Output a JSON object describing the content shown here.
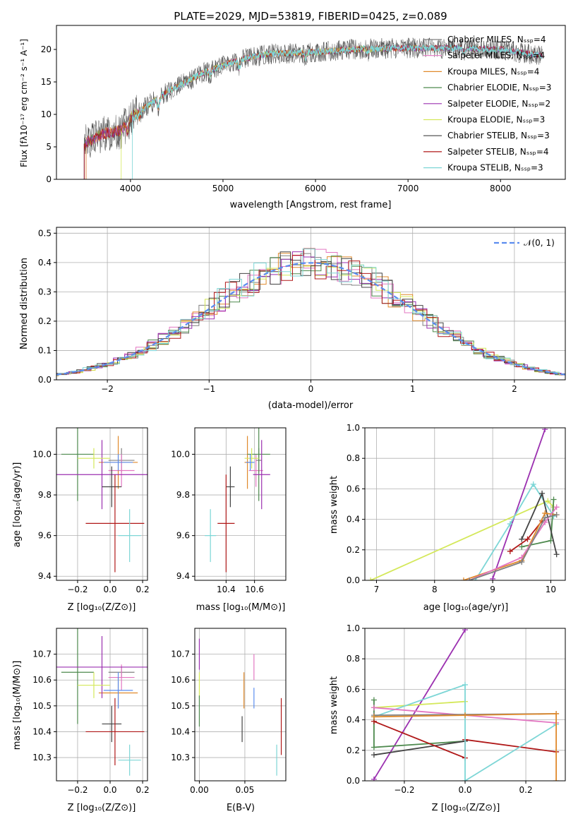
{
  "title": "PLATE=2029, MJD=53819, FIBERID=0425, z=0.089",
  "colors": {
    "chabrier_miles": "#808080",
    "salpeter_miles": "#e377c2",
    "kroupa_miles": "#e08a2c",
    "chabrier_elodie": "#4e8a4e",
    "salpeter_elodie": "#9b30b0",
    "kroupa_elodie": "#d4e85a",
    "chabrier_stelib": "#444444",
    "salpeter_stelib": "#b01818",
    "kroupa_stelib": "#7dd6d6",
    "blue_extra": "#5b8def",
    "normal_curve": "#5b8def"
  },
  "chart_data": [
    {
      "id": "spectrum",
      "type": "line",
      "xlabel": "wavelength [Angstrom, rest frame]",
      "ylabel": "Flux [f$_\\lambda$10$^{-17}$ erg cm$^{-2}$ s$^{-1}$ A$^{-1}$]",
      "xlim": [
        3200,
        8700
      ],
      "ylim": [
        0,
        23.7
      ],
      "xticks": [
        "4000",
        "5000",
        "6000",
        "7000",
        "8000"
      ],
      "yticks": [
        "0",
        "5",
        "10",
        "15",
        "20"
      ],
      "legend": "upper-right",
      "series": [
        {
          "name": "Chabrier MILES, N$_{SSP}$=4",
          "key": "chabrier_miles"
        },
        {
          "name": "Salpeter MILES, N$_{SSP}$=4",
          "key": "salpeter_miles"
        },
        {
          "name": "Kroupa MILES, N$_{SSP}$=4",
          "key": "kroupa_miles"
        },
        {
          "name": "Chabrier ELODIE, N$_{SSP}$=3",
          "key": "chabrier_elodie"
        },
        {
          "name": "Salpeter ELODIE, N$_{SSP}$=2",
          "key": "salpeter_elodie"
        },
        {
          "name": "Kroupa ELODIE, N$_{SSP}$=3",
          "key": "kroupa_elodie"
        },
        {
          "name": "Chabrier STELIB, N$_{SSP}$=3",
          "key": "chabrier_stelib"
        },
        {
          "name": "Salpeter STELIB, N$_{SSP}$=4",
          "key": "salpeter_stelib"
        },
        {
          "name": "Kroupa STELIB, N$_{SSP}$=3",
          "key": "kroupa_stelib"
        }
      ],
      "continuum": [
        [
          3500,
          5.5
        ],
        [
          3700,
          7
        ],
        [
          3900,
          7.5
        ],
        [
          4000,
          9.5
        ],
        [
          4200,
          11.5
        ],
        [
          4400,
          13.5
        ],
        [
          4600,
          15
        ],
        [
          4800,
          16.5
        ],
        [
          5000,
          17.5
        ],
        [
          5200,
          18.5
        ],
        [
          5500,
          19.3
        ],
        [
          6000,
          19.6
        ],
        [
          6500,
          20.1
        ],
        [
          7000,
          20.2
        ],
        [
          7500,
          20.2
        ],
        [
          8000,
          20
        ],
        [
          8450,
          19
        ]
      ],
      "dips": [
        [
          3968,
          1.5
        ],
        [
          4101,
          0.8
        ],
        [
          4300,
          1.5
        ],
        [
          4861,
          0.8
        ],
        [
          5175,
          1.2
        ],
        [
          5890,
          0.9
        ],
        [
          6563,
          0.8
        ],
        [
          7600,
          0.5
        ]
      ]
    },
    {
      "id": "residuals",
      "type": "area",
      "xlabel": "(data-model)/error",
      "ylabel": "Normed distribution",
      "xlim": [
        -2.5,
        2.5
      ],
      "ylim": [
        0,
        0.52
      ],
      "xticks": [
        "−2",
        "−1",
        "0",
        "1",
        "2"
      ],
      "yticks": [
        "0.0",
        "0.1",
        "0.2",
        "0.3",
        "0.4",
        "0.5"
      ],
      "legend": "top-right",
      "normal_label": "$\\mathcal{N}(0,1)$",
      "grid": true
    },
    {
      "id": "age_vs_Z",
      "type": "scatter",
      "xlabel": "Z [log$_{10}$($Z/Z_\\odot$)]",
      "ylabel": "age  [log$_{10}$($age/yr$)]",
      "xlim": [
        -0.33,
        0.23
      ],
      "ylim": [
        9.38,
        10.13
      ],
      "xticks": [
        "−0.2",
        "0.0",
        "0.2"
      ],
      "yticks": [
        "9.4",
        "9.6",
        "9.8",
        "10.0"
      ],
      "points": [
        {
          "key": "chabrier_miles",
          "x": 0.07,
          "y": 9.97,
          "xerr": 0.08,
          "yerr": 0.06
        },
        {
          "key": "salpeter_miles",
          "x": 0.07,
          "y": 9.92,
          "xerr": 0.08,
          "yerr": 0.08
        },
        {
          "key": "kroupa_miles",
          "x": 0.05,
          "y": 9.96,
          "xerr": 0.12,
          "yerr": 0.13
        },
        {
          "key": "chabrier_elodie",
          "x": -0.2,
          "y": 10.0,
          "xerr": 0.1,
          "yerr": 0.23
        },
        {
          "key": "salpeter_elodie",
          "x": -0.05,
          "y": 9.9,
          "xerr": 0.28,
          "yerr": 0.17
        },
        {
          "key": "kroupa_elodie",
          "x": -0.1,
          "y": 9.98,
          "xerr": 0.1,
          "yerr": 0.05
        },
        {
          "key": "chabrier_stelib",
          "x": 0.01,
          "y": 9.84,
          "xerr": 0.06,
          "yerr": 0.1
        },
        {
          "key": "salpeter_stelib",
          "x": 0.03,
          "y": 9.66,
          "xerr": 0.18,
          "yerr": 0.24
        },
        {
          "key": "kroupa_stelib",
          "x": 0.12,
          "y": 9.6,
          "xerr": 0.07,
          "yerr": 0.13
        },
        {
          "key": "blue_extra",
          "x": 0.05,
          "y": 9.96,
          "xerr": 0.09,
          "yerr": 0.04
        }
      ]
    },
    {
      "id": "age_vs_mass",
      "type": "scatter",
      "xlabel": "mass [log$_{10}$($M/M_\\odot$)]",
      "ylabel": "",
      "xlim": [
        10.18,
        10.82
      ],
      "ylim": [
        9.38,
        10.13
      ],
      "xticks": [
        "10.4",
        "10.6"
      ],
      "yticks": [
        "9.4",
        "9.6",
        "9.8",
        "10.0"
      ],
      "points": [
        {
          "key": "chabrier_miles",
          "x": 10.63,
          "y": 9.97,
          "xerr": 0.02,
          "yerr": 0.06
        },
        {
          "key": "salpeter_miles",
          "x": 10.61,
          "y": 9.92,
          "xerr": 0.05,
          "yerr": 0.08
        },
        {
          "key": "kroupa_miles",
          "x": 10.55,
          "y": 9.96,
          "xerr": 0.02,
          "yerr": 0.13
        },
        {
          "key": "chabrier_elodie",
          "x": 10.63,
          "y": 10.0,
          "xerr": 0.08,
          "yerr": 0.23
        },
        {
          "key": "salpeter_elodie",
          "x": 10.65,
          "y": 9.9,
          "xerr": 0.06,
          "yerr": 0.17
        },
        {
          "key": "kroupa_elodie",
          "x": 10.58,
          "y": 9.98,
          "xerr": 0.05,
          "yerr": 0.05
        },
        {
          "key": "chabrier_stelib",
          "x": 10.43,
          "y": 9.84,
          "xerr": 0.03,
          "yerr": 0.1
        },
        {
          "key": "salpeter_stelib",
          "x": 10.4,
          "y": 9.66,
          "xerr": 0.06,
          "yerr": 0.24
        },
        {
          "key": "kroupa_stelib",
          "x": 10.29,
          "y": 9.6,
          "xerr": 0.04,
          "yerr": 0.13
        },
        {
          "key": "blue_extra",
          "x": 10.57,
          "y": 9.96,
          "xerr": 0.03,
          "yerr": 0.04
        }
      ]
    },
    {
      "id": "weight_vs_age",
      "type": "line",
      "xlabel": "age  [log$_{10}$($age/yr$)]",
      "ylabel": "mass weight",
      "xlim": [
        6.8,
        10.25
      ],
      "ylim": [
        0,
        1
      ],
      "xticks": [
        "7",
        "8",
        "9",
        "10"
      ],
      "yticks": [
        "0.0",
        "0.2",
        "0.4",
        "0.6",
        "0.8",
        "1.0"
      ],
      "grid": true,
      "series": [
        {
          "key": "kroupa_elodie",
          "x": [
            6.9,
            9.95,
            10.05
          ],
          "y": [
            0.0,
            0.52,
            0.48
          ]
        },
        {
          "key": "salpeter_elodie",
          "x": [
            9.0,
            9.9
          ],
          "y": [
            0.01,
            0.99
          ]
        },
        {
          "key": "kroupa_stelib",
          "x": [
            8.7,
            9.3,
            9.7,
            10.05
          ],
          "y": [
            0.0,
            0.37,
            0.63,
            0.42
          ]
        },
        {
          "key": "chabrier_elodie",
          "x": [
            9.5,
            10.0,
            10.05
          ],
          "y": [
            0.22,
            0.26,
            0.53
          ]
        },
        {
          "key": "chabrier_stelib",
          "x": [
            9.5,
            9.85,
            10.1
          ],
          "y": [
            0.27,
            0.57,
            0.17
          ]
        },
        {
          "key": "salpeter_stelib",
          "x": [
            9.3,
            9.6,
            9.85
          ],
          "y": [
            0.19,
            0.27,
            0.39
          ]
        },
        {
          "key": "kroupa_miles",
          "x": [
            8.5,
            9.5,
            9.9,
            10.1
          ],
          "y": [
            0.0,
            0.13,
            0.44,
            0.43
          ]
        },
        {
          "key": "salpeter_miles",
          "x": [
            8.6,
            9.5,
            9.9,
            10.1
          ],
          "y": [
            0.0,
            0.15,
            0.38,
            0.48
          ]
        },
        {
          "key": "chabrier_miles",
          "x": [
            8.6,
            9.5,
            9.9,
            10.1
          ],
          "y": [
            0.0,
            0.12,
            0.41,
            0.43
          ]
        }
      ]
    },
    {
      "id": "mass_vs_Z",
      "type": "scatter",
      "xlabel": "Z [log$_{10}$($Z/Z_\\odot$)]",
      "ylabel": "mass [log$_{10}$($M/M_\\odot$)]",
      "xlim": [
        -0.33,
        0.23
      ],
      "ylim": [
        10.21,
        10.8
      ],
      "xticks": [
        "−0.2",
        "0.0",
        "0.2"
      ],
      "yticks": [
        "10.3",
        "10.4",
        "10.5",
        "10.6",
        "10.7"
      ],
      "points": [
        {
          "key": "chabrier_miles",
          "x": 0.07,
          "y": 10.63,
          "xerr": 0.08,
          "yerr": 0.02
        },
        {
          "key": "salpeter_miles",
          "x": 0.07,
          "y": 10.61,
          "xerr": 0.08,
          "yerr": 0.05
        },
        {
          "key": "kroupa_miles",
          "x": 0.05,
          "y": 10.55,
          "xerr": 0.12,
          "yerr": 0.06
        },
        {
          "key": "chabrier_elodie",
          "x": -0.2,
          "y": 10.63,
          "xerr": 0.1,
          "yerr": 0.2
        },
        {
          "key": "salpeter_elodie",
          "x": -0.05,
          "y": 10.65,
          "xerr": 0.28,
          "yerr": 0.12
        },
        {
          "key": "kroupa_elodie",
          "x": -0.1,
          "y": 10.58,
          "xerr": 0.1,
          "yerr": 0.05
        },
        {
          "key": "chabrier_stelib",
          "x": 0.01,
          "y": 10.43,
          "xerr": 0.06,
          "yerr": 0.07
        },
        {
          "key": "salpeter_stelib",
          "x": 0.03,
          "y": 10.4,
          "xerr": 0.18,
          "yerr": 0.13
        },
        {
          "key": "kroupa_stelib",
          "x": 0.12,
          "y": 10.29,
          "xerr": 0.07,
          "yerr": 0.06
        },
        {
          "key": "blue_extra",
          "x": 0.05,
          "y": 10.56,
          "xerr": 0.09,
          "yerr": 0.07
        }
      ]
    },
    {
      "id": "mass_vs_ebv",
      "type": "scatter",
      "xlabel": "E(B-V)",
      "ylabel": "",
      "xlim": [
        -0.005,
        0.095
      ],
      "ylim": [
        10.21,
        10.8
      ],
      "xticks": [
        "0.00",
        "0.05"
      ],
      "yticks": [
        "10.3",
        "10.4",
        "10.5",
        "10.6",
        "10.7"
      ],
      "points": [
        {
          "key": "salpeter_elodie",
          "x": 0.0,
          "y": 10.7,
          "yerr": 0.06
        },
        {
          "key": "kroupa_elodie",
          "x": 0.0,
          "y": 10.58,
          "yerr": 0.05
        },
        {
          "key": "chabrier_elodie",
          "x": 0.0,
          "y": 10.48,
          "yerr": 0.06
        },
        {
          "key": "kroupa_miles",
          "x": 0.049,
          "y": 10.56,
          "yerr": 0.07
        },
        {
          "key": "chabrier_stelib",
          "x": 0.047,
          "y": 10.41,
          "yerr": 0.05
        },
        {
          "key": "salpeter_miles",
          "x": 0.06,
          "y": 10.65,
          "yerr": 0.05
        },
        {
          "key": "blue_extra",
          "x": 0.06,
          "y": 10.53,
          "yerr": 0.04
        },
        {
          "key": "kroupa_stelib",
          "x": 0.085,
          "y": 10.29,
          "yerr": 0.06
        },
        {
          "key": "salpeter_stelib",
          "x": 0.09,
          "y": 10.42,
          "yerr": 0.11
        }
      ]
    },
    {
      "id": "weight_vs_Z",
      "type": "line",
      "xlabel": "Z [log$_{10}$($Z/Z_\\odot$)]",
      "ylabel": "mass weight",
      "xlim": [
        -0.33,
        0.33
      ],
      "ylim": [
        0,
        1
      ],
      "xticks": [
        "−0.2",
        "0.0",
        "0.2"
      ],
      "yticks": [
        "0.0",
        "0.2",
        "0.4",
        "0.6",
        "0.8",
        "1.0"
      ],
      "grid": true,
      "series": [
        {
          "key": "salpeter_elodie",
          "x": [
            -0.3,
            0.0
          ],
          "y": [
            0.01,
            0.99
          ]
        },
        {
          "key": "kroupa_elodie",
          "x": [
            -0.3,
            0.0
          ],
          "y": [
            0.48,
            0.52
          ]
        },
        {
          "key": "chabrier_elodie",
          "x": [
            -0.3,
            -0.3,
            0.0
          ],
          "y": [
            0.53,
            0.22,
            0.26
          ]
        },
        {
          "key": "chabrier_stelib",
          "x": [
            -0.3,
            0.0
          ],
          "y": [
            0.17,
            0.26
          ]
        },
        {
          "key": "salpeter_stelib",
          "x": [
            -0.3,
            0.0,
            0.0,
            0.3
          ],
          "y": [
            0.39,
            0.15,
            0.27,
            0.19
          ]
        },
        {
          "key": "kroupa_stelib",
          "x": [
            -0.3,
            0.0,
            0.0,
            0.3
          ],
          "y": [
            0.42,
            0.63,
            0.0,
            0.37
          ]
        },
        {
          "key": "salpeter_miles",
          "x": [
            -0.3,
            0.3
          ],
          "y": [
            0.48,
            0.38
          ]
        },
        {
          "key": "chabrier_miles",
          "x": [
            -0.3,
            0.3
          ],
          "y": [
            0.43,
            0.44
          ]
        },
        {
          "key": "kroupa_miles",
          "x": [
            -0.3,
            0.0,
            0.3,
            0.3
          ],
          "y": [
            0.42,
            0.43,
            0.44,
            0.0
          ]
        }
      ]
    }
  ]
}
